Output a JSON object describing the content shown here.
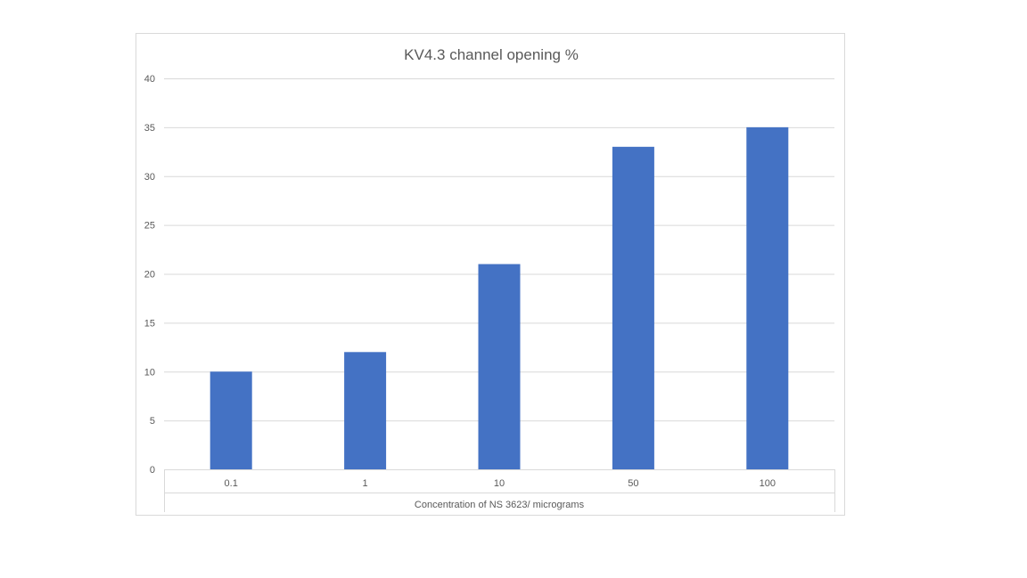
{
  "chart_data": {
    "type": "bar",
    "title": "KV4.3 channel opening %",
    "xlabel": "Concentration of NS 3623/ micrograms",
    "ylabel": "",
    "categories": [
      "0.1",
      "1",
      "10",
      "50",
      "100"
    ],
    "values": [
      10,
      12,
      21,
      33,
      35
    ],
    "ylim": [
      0,
      40
    ],
    "yticks": [
      0,
      5,
      10,
      15,
      20,
      25,
      30,
      35,
      40
    ],
    "grid": true,
    "legend": "none",
    "bar_color": "#4472c4",
    "grid_color": "#d9d9d9"
  }
}
